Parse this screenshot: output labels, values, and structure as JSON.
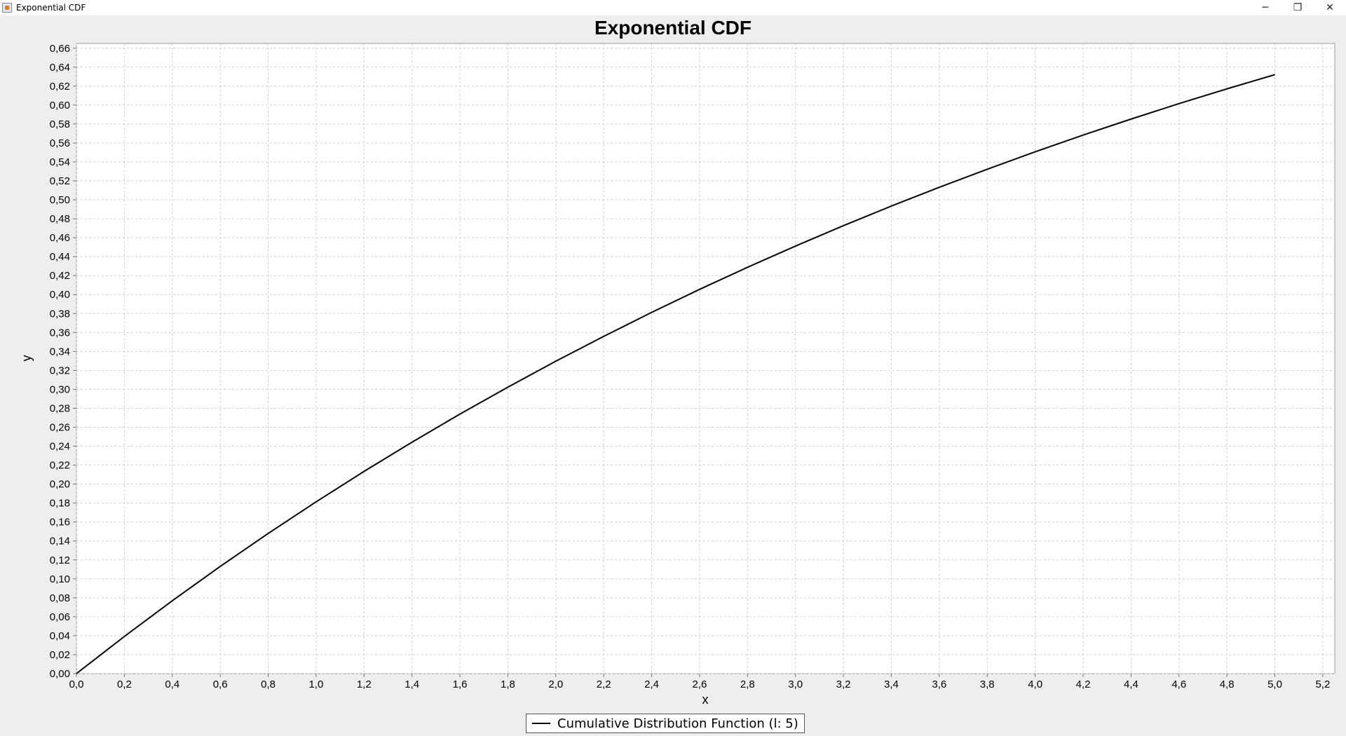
{
  "window": {
    "title": "Exponential CDF",
    "minimize_glyph": "─",
    "restore_glyph": "❐",
    "close_glyph": "✕"
  },
  "chart_data": {
    "type": "line",
    "title": "Exponential CDF",
    "xlabel": "x",
    "ylabel": "y",
    "xlim": [
      0,
      5.25
    ],
    "ylim": [
      0,
      0.665
    ],
    "x_ticks": [
      "0,0",
      "0,2",
      "0,4",
      "0,6",
      "0,8",
      "1,0",
      "1,2",
      "1,4",
      "1,6",
      "1,8",
      "2,0",
      "2,2",
      "2,4",
      "2,6",
      "2,8",
      "3,0",
      "3,2",
      "3,4",
      "3,6",
      "3,8",
      "4,0",
      "4,2",
      "4,4",
      "4,6",
      "4,8",
      "5,0",
      "5,2"
    ],
    "y_ticks": [
      "0,00",
      "0,02",
      "0,04",
      "0,06",
      "0,08",
      "0,10",
      "0,12",
      "0,14",
      "0,16",
      "0,18",
      "0,20",
      "0,22",
      "0,24",
      "0,26",
      "0,28",
      "0,30",
      "0,32",
      "0,34",
      "0,36",
      "0,38",
      "0,40",
      "0,42",
      "0,44",
      "0,46",
      "0,48",
      "0,50",
      "0,52",
      "0,54",
      "0,56",
      "0,58",
      "0,60",
      "0,62",
      "0,64",
      "0,66"
    ],
    "grid": true,
    "legend_position": "bottom-center",
    "series": [
      {
        "name": "Cumulative Distribution Function (l: 5)",
        "color": "#000000",
        "x": [
          0.0,
          0.2,
          0.4,
          0.6,
          0.8,
          1.0,
          1.2,
          1.4,
          1.6,
          1.8,
          2.0,
          2.2,
          2.4,
          2.6,
          2.8,
          3.0,
          3.2,
          3.4,
          3.6,
          3.8,
          4.0,
          4.2,
          4.4,
          4.6,
          4.8,
          5.0
        ],
        "y": [
          0.0,
          0.0392,
          0.0769,
          0.1131,
          0.1479,
          0.1813,
          0.2134,
          0.2442,
          0.2739,
          0.3023,
          0.3297,
          0.3559,
          0.3812,
          0.4055,
          0.4288,
          0.4512,
          0.4727,
          0.4934,
          0.5132,
          0.5323,
          0.5507,
          0.5683,
          0.5852,
          0.6015,
          0.6171,
          0.6321
        ]
      }
    ]
  }
}
